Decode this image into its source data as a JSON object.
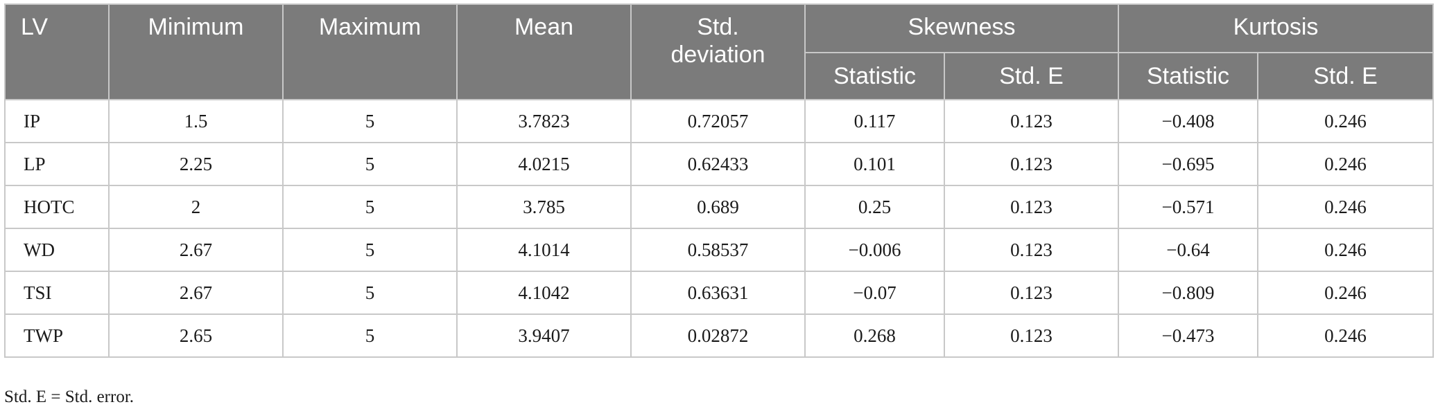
{
  "headers": {
    "lv": "LV",
    "minimum": "Minimum",
    "maximum": "Maximum",
    "mean": "Mean",
    "std_deviation": [
      "Std.",
      "deviation"
    ],
    "skewness": "Skewness",
    "kurtosis": "Kurtosis",
    "statistic": "Statistic",
    "std_e": "Std. E"
  },
  "rows": [
    {
      "lv": "IP",
      "min": "1.5",
      "max": "5",
      "mean": "3.7823",
      "sd": "0.72057",
      "skew_stat": "0.117",
      "skew_se": "0.123",
      "kurt_stat": "−0.408",
      "kurt_se": "0.246"
    },
    {
      "lv": "LP",
      "min": "2.25",
      "max": "5",
      "mean": "4.0215",
      "sd": "0.62433",
      "skew_stat": "0.101",
      "skew_se": "0.123",
      "kurt_stat": "−0.695",
      "kurt_se": "0.246"
    },
    {
      "lv": "HOTC",
      "min": "2",
      "max": "5",
      "mean": "3.785",
      "sd": "0.689",
      "skew_stat": "0.25",
      "skew_se": "0.123",
      "kurt_stat": "−0.571",
      "kurt_se": "0.246"
    },
    {
      "lv": "WD",
      "min": "2.67",
      "max": "5",
      "mean": "4.1014",
      "sd": "0.58537",
      "skew_stat": "−0.006",
      "skew_se": "0.123",
      "kurt_stat": "−0.64",
      "kurt_se": "0.246"
    },
    {
      "lv": "TSI",
      "min": "2.67",
      "max": "5",
      "mean": "4.1042",
      "sd": "0.63631",
      "skew_stat": "−0.07",
      "skew_se": "0.123",
      "kurt_stat": "−0.809",
      "kurt_se": "0.246"
    },
    {
      "lv": "TWP",
      "min": "2.65",
      "max": "5",
      "mean": "3.9407",
      "sd": "0.02872",
      "skew_stat": "0.268",
      "skew_se": "0.123",
      "kurt_stat": "−0.473",
      "kurt_se": "0.246"
    }
  ],
  "footnote": "Std. E = Std. error."
}
